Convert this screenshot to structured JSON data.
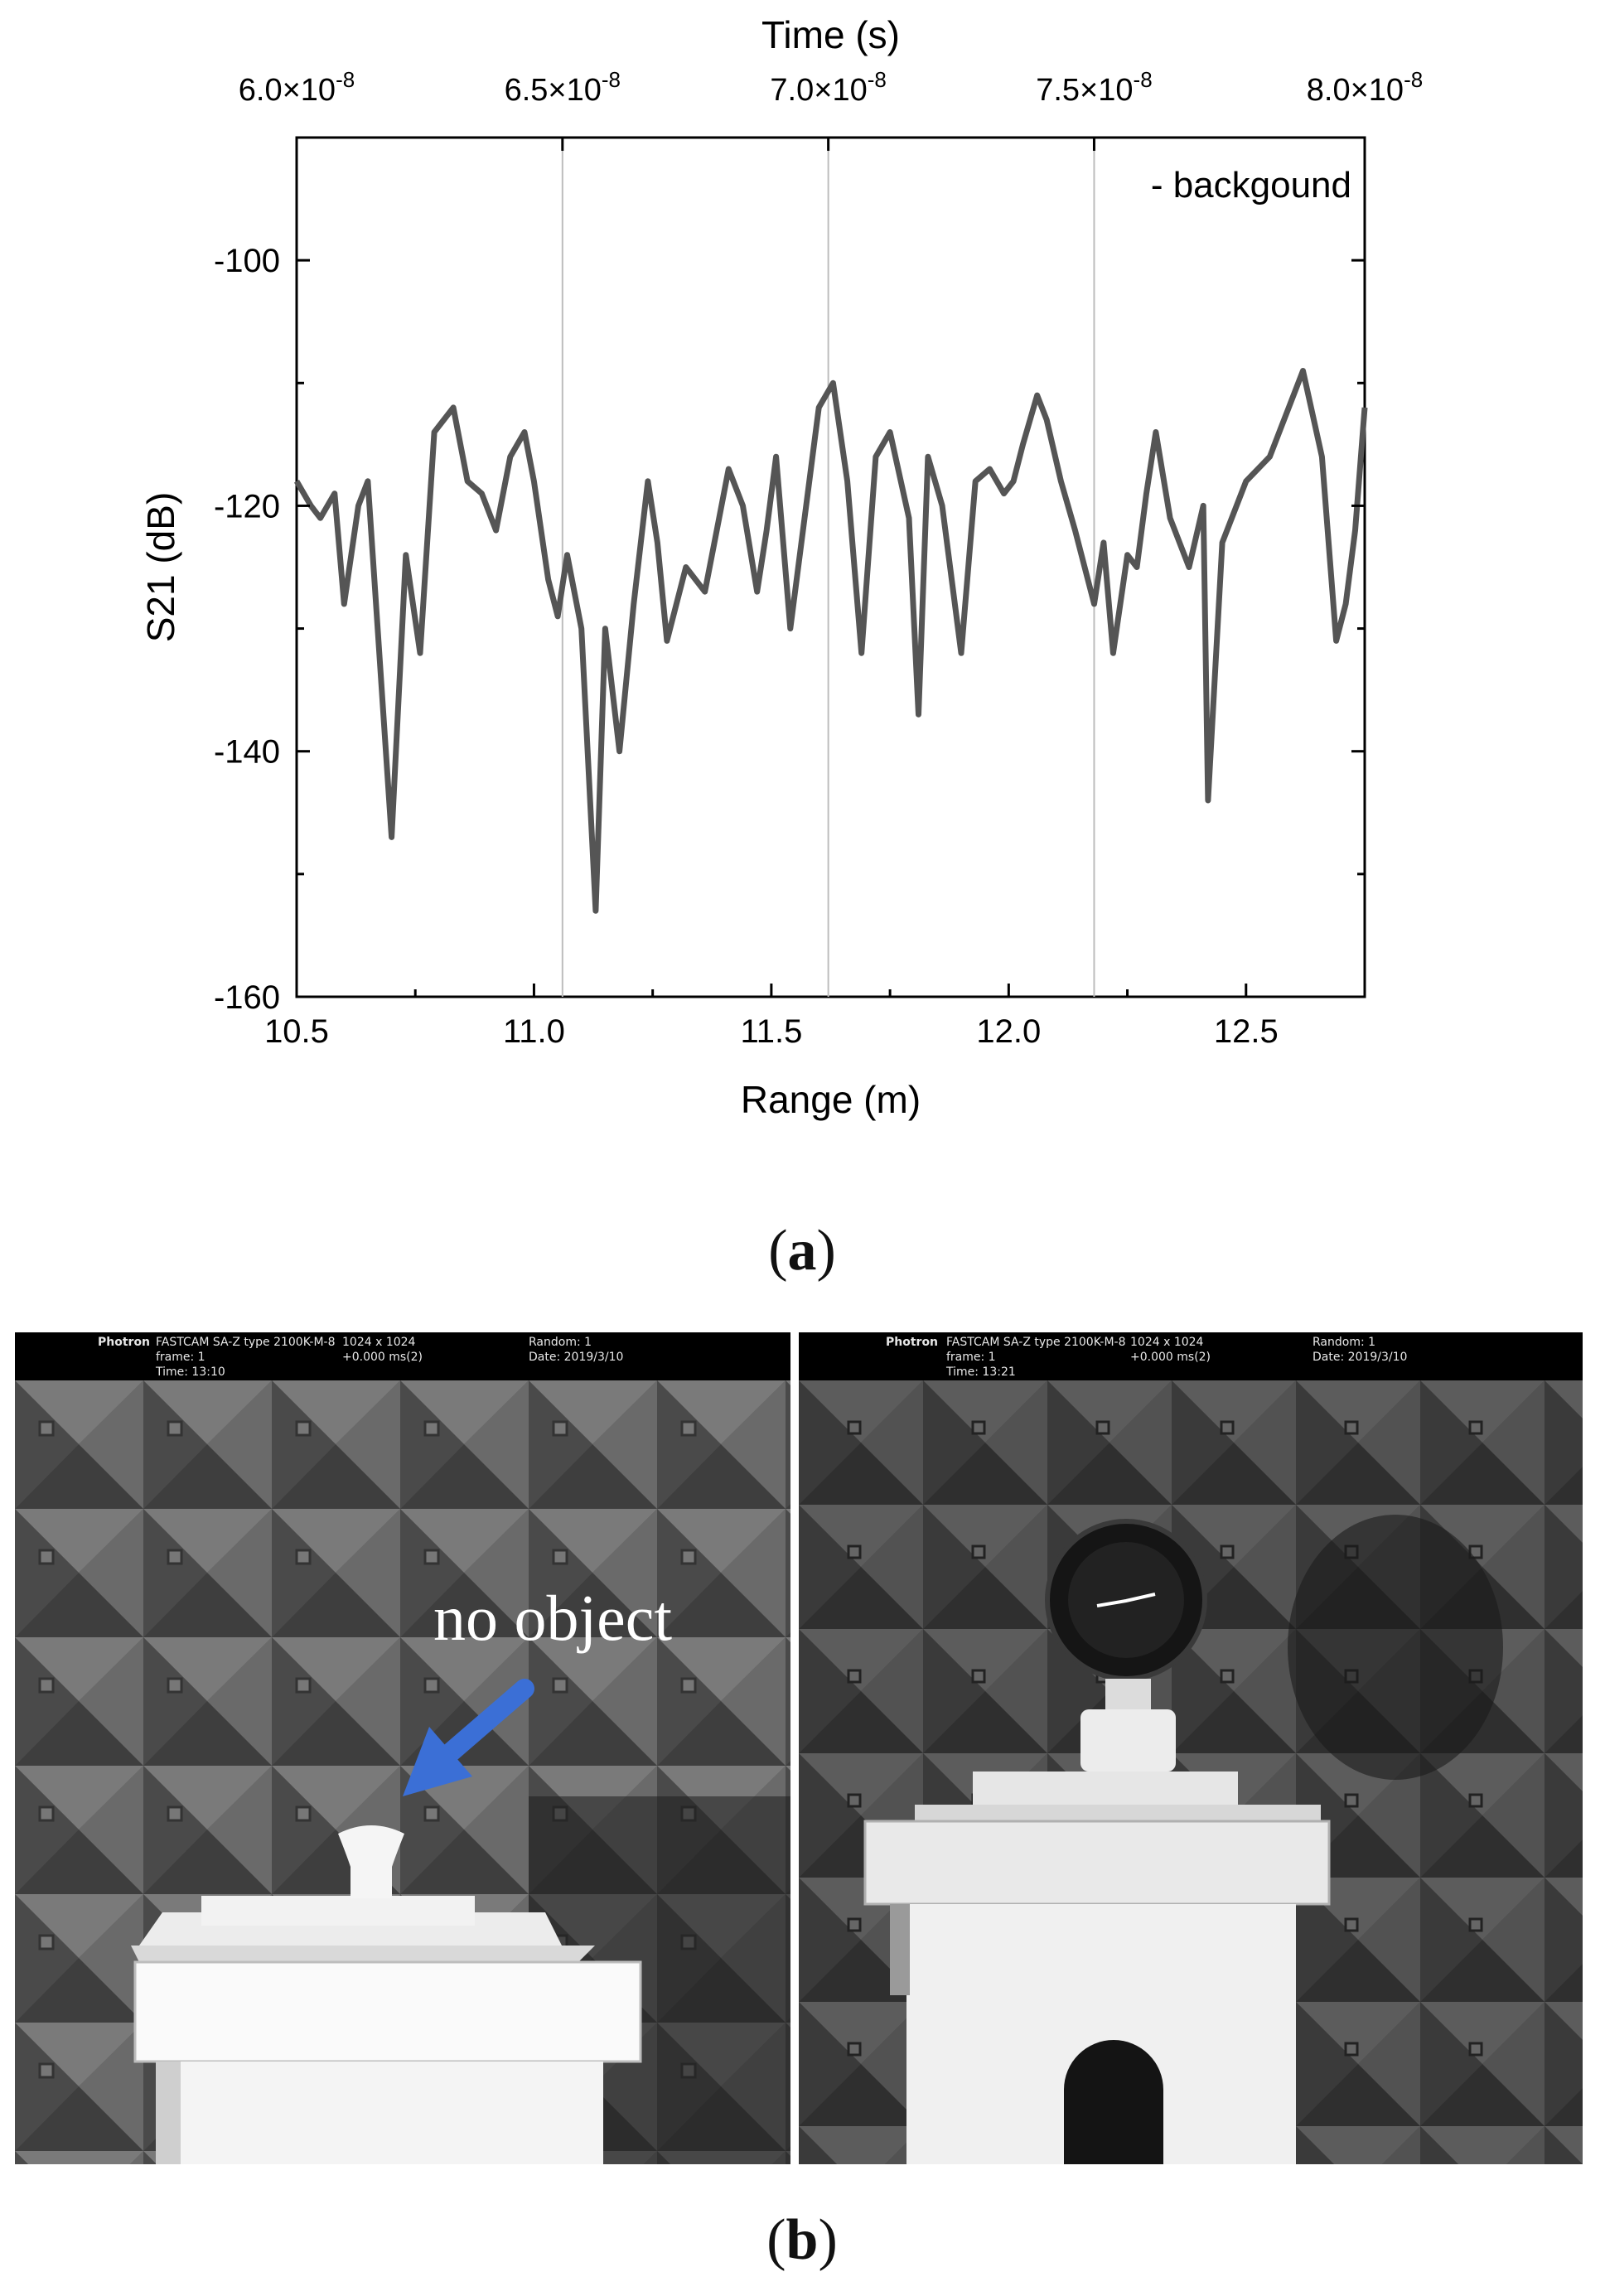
{
  "chart_data": {
    "type": "line",
    "title": "",
    "xlabel": "Range (m)",
    "ylabel": "S21 (dB)",
    "x2label": "Time (s)",
    "xlim": [
      10.5,
      12.75
    ],
    "ylim": [
      -160,
      -90
    ],
    "x_ticks": [
      "10.5",
      "11.0",
      "11.5",
      "12.0",
      "12.5"
    ],
    "y_ticks": [
      "-100",
      "-120",
      "-140",
      "-160"
    ],
    "x2_ticks": [
      "6.0×10-8",
      "6.5×10-8",
      "7.0×10-8",
      "7.5×10-8",
      "8.0×10-8"
    ],
    "x2_tick_base": [
      "6.0×10",
      "6.5×10",
      "7.0×10",
      "7.5×10",
      "8.0×10"
    ],
    "x2_tick_exp": [
      "-8",
      "-8",
      "-8",
      "-8",
      "-8"
    ],
    "x2_tick_range_positions": [
      10.5,
      11.06,
      11.62,
      12.18,
      12.75
    ],
    "vertical_lines_at_range": [
      11.06,
      11.62,
      12.18
    ],
    "grid": false,
    "legend_text": "- backgound",
    "legend_position": "top-right",
    "line_color": "#555555",
    "series": [
      {
        "name": "backgound",
        "x": [
          10.5,
          10.53,
          10.55,
          10.58,
          10.6,
          10.63,
          10.65,
          10.7,
          10.73,
          10.76,
          10.79,
          10.83,
          10.86,
          10.89,
          10.92,
          10.95,
          10.98,
          11.0,
          11.03,
          11.05,
          11.07,
          11.1,
          11.13,
          11.15,
          11.18,
          11.21,
          11.24,
          11.26,
          11.28,
          11.32,
          11.36,
          11.39,
          11.41,
          11.44,
          11.47,
          11.49,
          11.51,
          11.54,
          11.57,
          11.6,
          11.63,
          11.66,
          11.69,
          11.72,
          11.75,
          11.79,
          11.81,
          11.83,
          11.86,
          11.9,
          11.93,
          11.96,
          11.99,
          12.01,
          12.03,
          12.06,
          12.08,
          12.11,
          12.14,
          12.16,
          12.18,
          12.2,
          12.22,
          12.25,
          12.27,
          12.29,
          12.31,
          12.34,
          12.38,
          12.41,
          12.42,
          12.45,
          12.5,
          12.55,
          12.58,
          12.62,
          12.66,
          12.69,
          12.71,
          12.73,
          12.75
        ],
        "y": [
          -118,
          -120,
          -121,
          -119,
          -128,
          -120,
          -118,
          -147,
          -124,
          -132,
          -114,
          -112,
          -118,
          -119,
          -122,
          -116,
          -114,
          -118,
          -126,
          -129,
          -124,
          -130,
          -153,
          -130,
          -140,
          -128,
          -118,
          -123,
          -131,
          -125,
          -127,
          -121,
          -117,
          -120,
          -127,
          -122,
          -116,
          -130,
          -121,
          -112,
          -110,
          -118,
          -132,
          -116,
          -114,
          -121,
          -137,
          -116,
          -120,
          -132,
          -118,
          -117,
          -119,
          -118,
          -115,
          -111,
          -113,
          -118,
          -122,
          -125,
          -128,
          -123,
          -132,
          -124,
          -125,
          -119,
          -114,
          -121,
          -125,
          -120,
          -144,
          -123,
          -118,
          -116,
          -113,
          -109,
          -116,
          -131,
          -128,
          -122,
          -112
        ]
      }
    ]
  },
  "figure": {
    "caption_a": "a",
    "caption_b": "b"
  },
  "photos": {
    "left": {
      "hud_brand": "Photron",
      "hud_model": "FASTCAM SA-Z type 2100K-M-8",
      "hud_resolution": "1024 x 1024",
      "hud_random": "Random: 1",
      "hud_frame": "frame: 1",
      "hud_shutter": "+0.000 ms(2)",
      "hud_date": "Date: 2019/3/10",
      "hud_time": "Time: 13:10",
      "annotation": "no object",
      "arrow_color": "#3b6fd6"
    },
    "right": {
      "hud_brand": "Photron",
      "hud_model": "FASTCAM SA-Z type 2100K-M-8",
      "hud_resolution": "1024 x 1024",
      "hud_random": "Random: 1",
      "hud_frame": "frame: 1",
      "hud_shutter": "+0.000 ms(2)",
      "hud_date": "Date: 2019/3/10",
      "hud_time": "Time: 13:21"
    }
  }
}
